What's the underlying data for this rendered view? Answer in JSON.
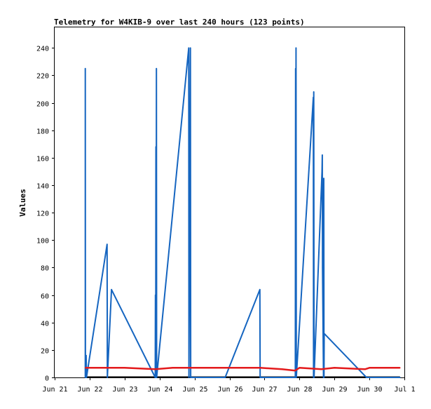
{
  "colors": {
    "background": "#ffffff",
    "axis": "#000000",
    "series_primary": "#1565c0",
    "series_secondary": "#e31a1c"
  },
  "chart_data": {
    "type": "line",
    "title": "Telemetry for W4KIB-9 over last 240 hours (123 points)",
    "xlabel": "",
    "ylabel": "Values",
    "x_axis": {
      "type": "date",
      "range": [
        "2016-06-21T00:00",
        "2016-07-01T00:00"
      ],
      "ticks": [
        {
          "label": "Jun 21",
          "value": "2016-06-21T00:00"
        },
        {
          "label": "Jun 22",
          "value": "2016-06-22T00:00"
        },
        {
          "label": "Jun 23",
          "value": "2016-06-23T00:00"
        },
        {
          "label": "Jun 24",
          "value": "2016-06-24T00:00"
        },
        {
          "label": "Jun 25",
          "value": "2016-06-25T00:00"
        },
        {
          "label": "Jun 26",
          "value": "2016-06-26T00:00"
        },
        {
          "label": "Jun 27",
          "value": "2016-06-27T00:00"
        },
        {
          "label": "Jun 28",
          "value": "2016-06-28T00:00"
        },
        {
          "label": "Jun 29",
          "value": "2016-06-29T00:00"
        },
        {
          "label": "Jun 30",
          "value": "2016-06-30T00:00"
        },
        {
          "label": "Jul 1",
          "value": "2016-07-01T00:00"
        }
      ]
    },
    "y_axis": {
      "range": [
        0,
        255
      ],
      "ticks": [
        0,
        20,
        40,
        60,
        80,
        100,
        120,
        140,
        160,
        180,
        200,
        220,
        240
      ]
    },
    "grid": false,
    "legend": "none",
    "series": [
      {
        "color": "#1565c0",
        "points": [
          [
            "2016-06-21T21:00",
            0
          ],
          [
            "2016-06-21T21:00",
            225
          ],
          [
            "2016-06-21T21:07",
            0
          ],
          [
            "2016-06-21T21:36",
            16
          ],
          [
            "2016-06-21T21:50",
            0
          ],
          [
            "2016-06-22T12:00",
            97
          ],
          [
            "2016-06-22T12:10",
            0
          ],
          [
            "2016-06-22T15:00",
            64
          ],
          [
            "2016-06-23T21:00",
            0
          ],
          [
            "2016-06-23T21:10",
            60
          ],
          [
            "2016-06-23T21:20",
            0
          ],
          [
            "2016-06-23T21:30",
            168
          ],
          [
            "2016-06-23T21:40",
            0
          ],
          [
            "2016-06-23T21:50",
            225
          ],
          [
            "2016-06-23T22:00",
            0
          ],
          [
            "2016-06-24T20:00",
            240
          ],
          [
            "2016-06-24T20:10",
            0
          ],
          [
            "2016-06-24T21:10",
            240
          ],
          [
            "2016-06-24T21:20",
            0
          ],
          [
            "2016-06-25T21:00",
            0
          ],
          [
            "2016-06-26T20:50",
            64
          ],
          [
            "2016-06-26T21:00",
            0
          ],
          [
            "2016-06-27T21:10",
            0
          ],
          [
            "2016-06-27T21:20",
            225
          ],
          [
            "2016-06-27T21:30",
            0
          ],
          [
            "2016-06-27T21:40",
            240
          ],
          [
            "2016-06-27T21:50",
            0
          ],
          [
            "2016-06-28T09:30",
            204
          ],
          [
            "2016-06-28T09:40",
            0
          ],
          [
            "2016-06-28T09:50",
            208
          ],
          [
            "2016-06-28T10:00",
            0
          ],
          [
            "2016-06-28T15:30",
            150
          ],
          [
            "2016-06-28T15:40",
            162
          ],
          [
            "2016-06-28T15:50",
            80
          ],
          [
            "2016-06-28T16:30",
            0
          ],
          [
            "2016-06-28T16:40",
            145
          ],
          [
            "2016-06-28T16:50",
            0
          ],
          [
            "2016-06-28T17:00",
            32
          ],
          [
            "2016-06-29T22:00",
            0
          ],
          [
            "2016-06-30T21:00",
            0
          ]
        ]
      },
      {
        "color": "#e31a1c",
        "points": [
          [
            "2016-06-21T21:00",
            7
          ],
          [
            "2016-06-22T12:00",
            7
          ],
          [
            "2016-06-23T00:00",
            7
          ],
          [
            "2016-06-23T21:00",
            6
          ],
          [
            "2016-06-24T09:00",
            7
          ],
          [
            "2016-06-24T21:00",
            7
          ],
          [
            "2016-06-26T21:00",
            7
          ],
          [
            "2016-06-27T12:00",
            6
          ],
          [
            "2016-06-27T21:00",
            5
          ],
          [
            "2016-06-28T00:00",
            7
          ],
          [
            "2016-06-28T15:00",
            6
          ],
          [
            "2016-06-29T00:00",
            7
          ],
          [
            "2016-06-29T21:00",
            6
          ],
          [
            "2016-06-30T00:00",
            7
          ],
          [
            "2016-06-30T21:00",
            7
          ]
        ]
      }
    ]
  }
}
